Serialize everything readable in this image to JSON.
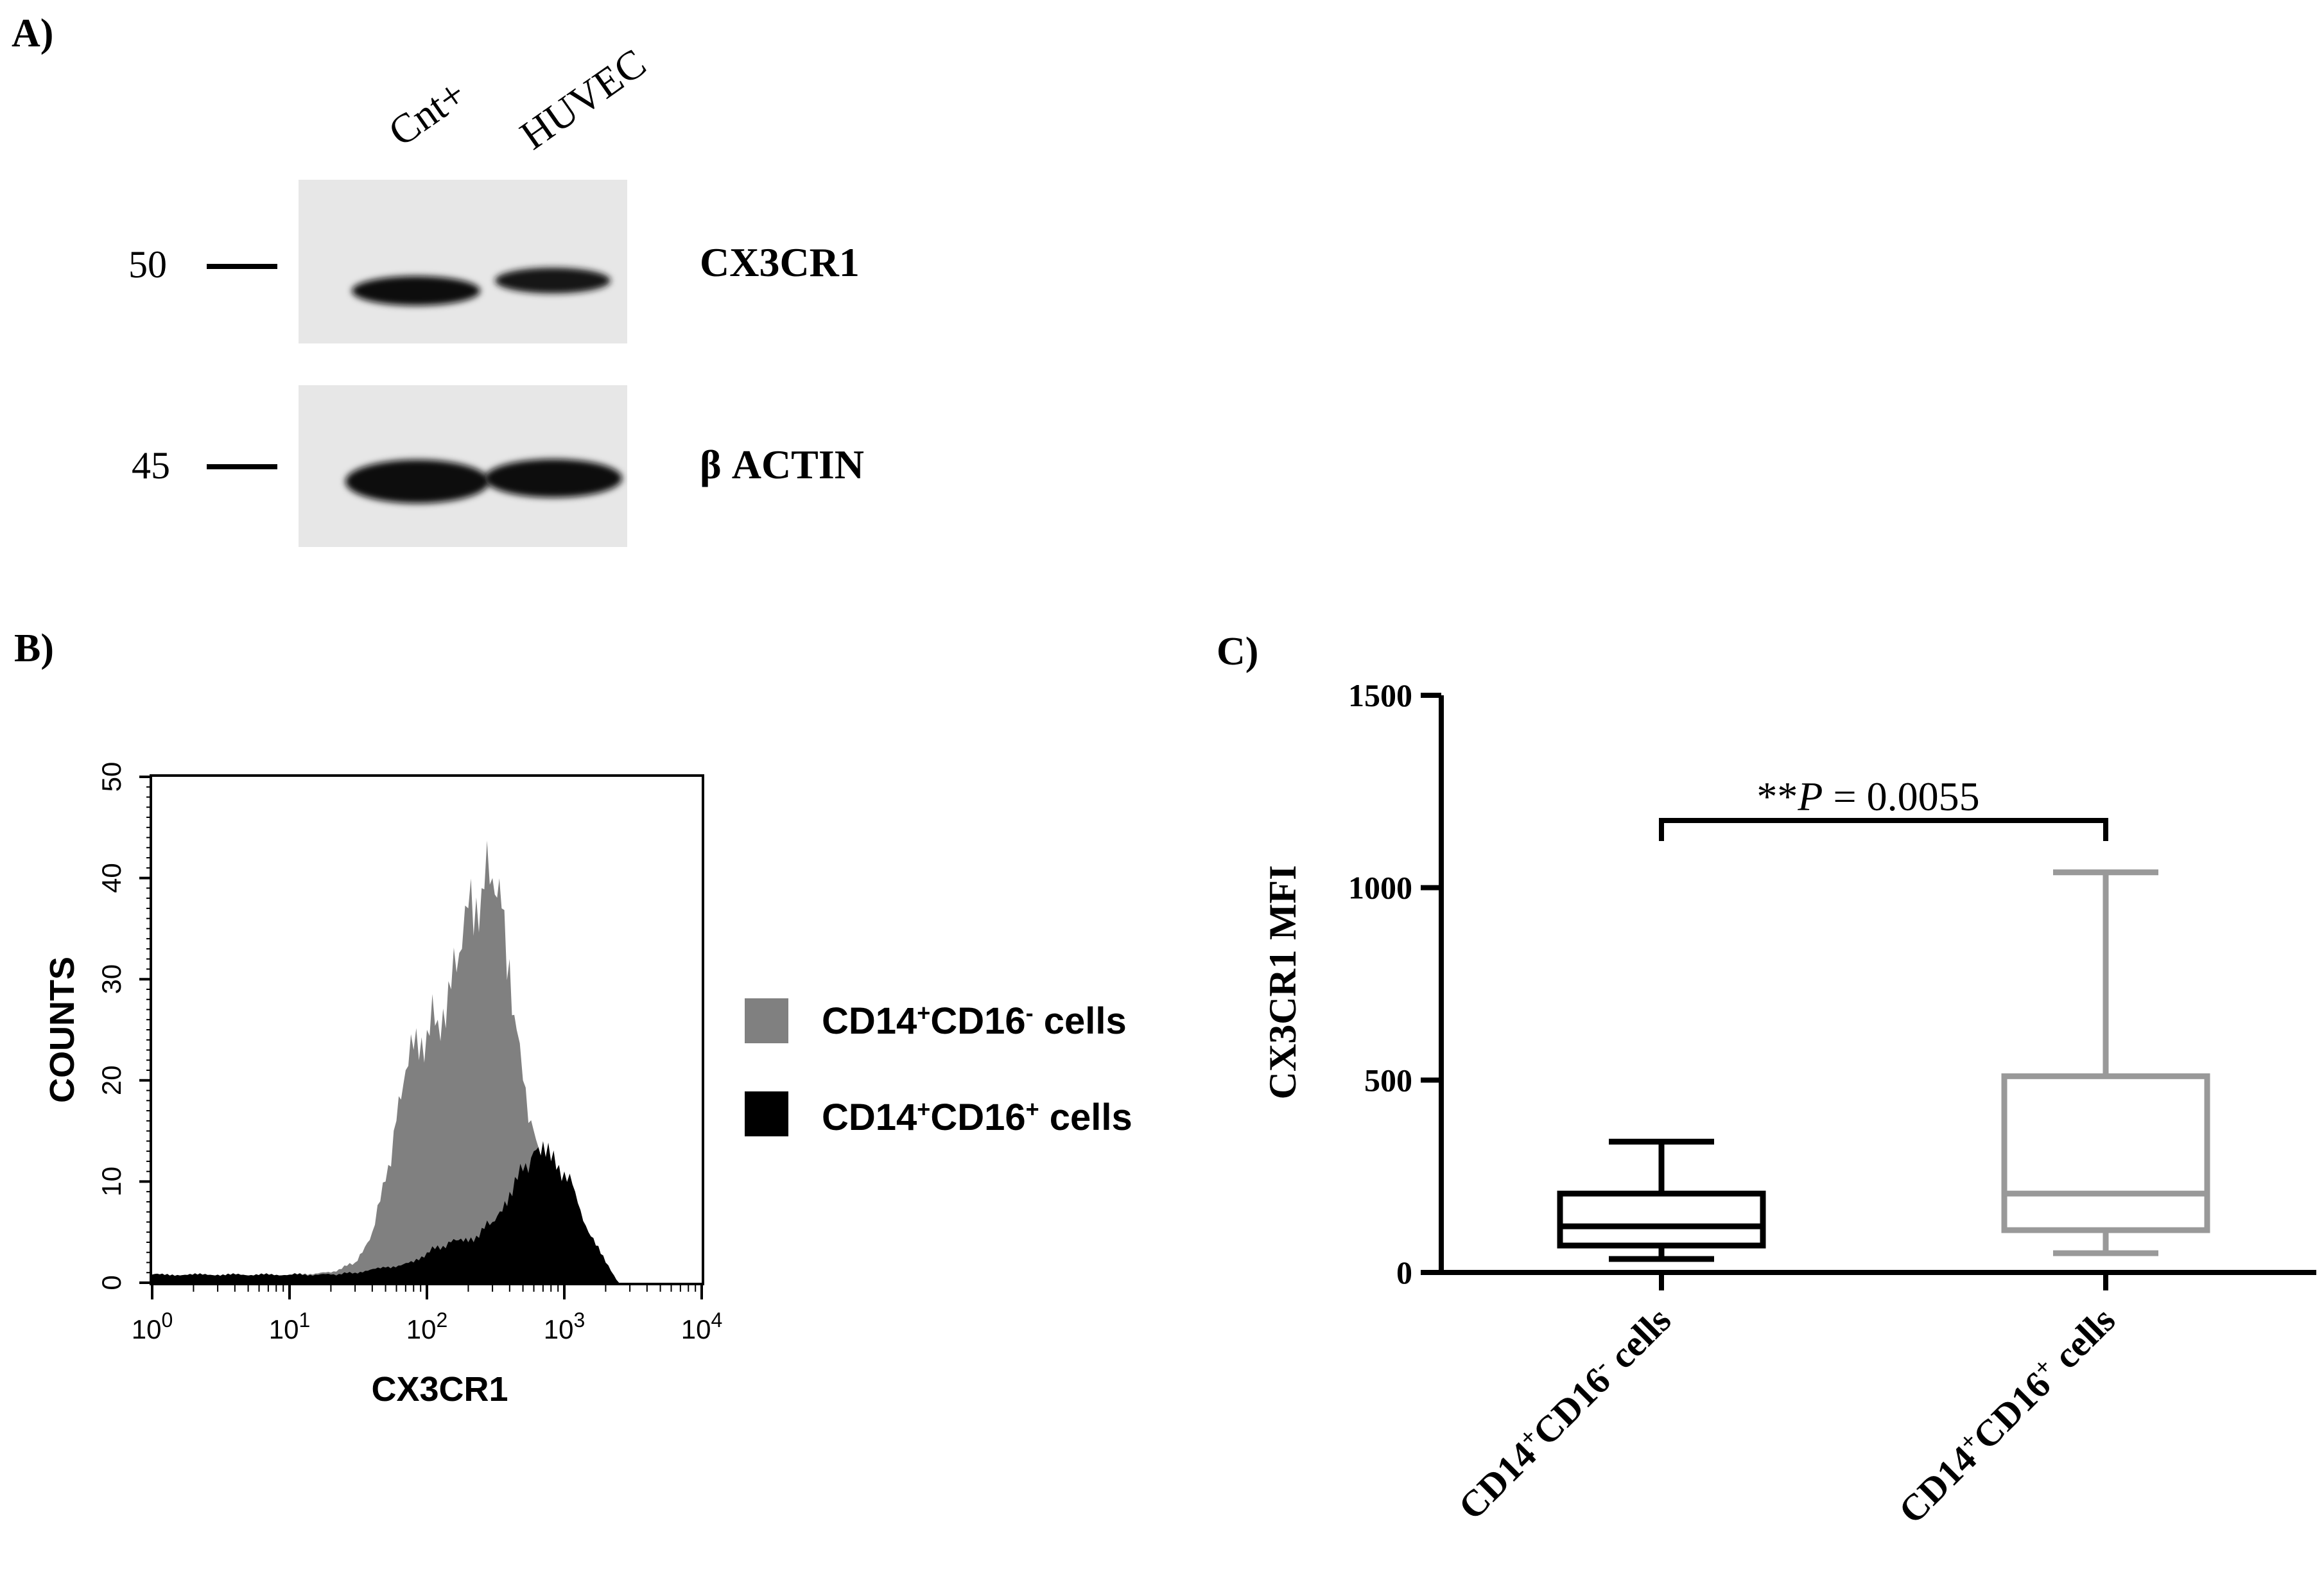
{
  "panels": {
    "a": {
      "label": "A)",
      "lanes": [
        "Cnt+",
        "HUVEC"
      ],
      "blots": [
        {
          "marker": "50",
          "protein": "CX3CR1"
        },
        {
          "marker": "45",
          "protein": "β ACTIN"
        }
      ]
    },
    "b": {
      "label": "B)",
      "ylabel": "COUNTS",
      "xlabel": "CX3CR1",
      "yticks": [
        "0",
        "10",
        "20",
        "30",
        "40",
        "50"
      ],
      "xtick_base": "10",
      "xtick_exps": [
        "0",
        "1",
        "2",
        "3",
        "4"
      ],
      "legend": [
        {
          "base": "CD14",
          "sup1": "+",
          "mid": "CD16",
          "sup2": "-",
          "tail": " cells",
          "color": "#808080"
        },
        {
          "base": "CD14",
          "sup1": "+",
          "mid": "CD16",
          "sup2": "+",
          "tail": " cells",
          "color": "#000000"
        }
      ]
    },
    "c": {
      "label": "C)",
      "pvalue": {
        "prefix": "**",
        "italic": "P",
        "rest": " = 0.0055"
      }
    }
  },
  "chart_data": [
    {
      "type": "area",
      "title": "",
      "xlabel": "CX3CR1",
      "ylabel": "COUNTS",
      "xscale": "log",
      "xlim": [
        1,
        10000
      ],
      "ylim": [
        0,
        50
      ],
      "grid": false,
      "legend_position": "right",
      "series": [
        {
          "name": "CD14+CD16- cells",
          "color": "#808080",
          "x": [
            1,
            3,
            10,
            20,
            30,
            40,
            50,
            60,
            70,
            80,
            100,
            120,
            150,
            180,
            200,
            250,
            300,
            350,
            400,
            450,
            500,
            600,
            700,
            800,
            1000,
            1300,
            1800,
            2500
          ],
          "y": [
            0.8,
            0.8,
            0.8,
            1,
            2,
            5,
            10,
            16,
            21,
            23,
            25,
            26,
            29,
            33,
            37,
            39,
            40,
            37,
            32,
            25,
            20,
            15,
            12,
            10,
            8,
            6,
            3,
            0
          ]
        },
        {
          "name": "CD14+CD16+ cells",
          "color": "#000000",
          "x": [
            1,
            3,
            10,
            20,
            30,
            50,
            80,
            100,
            150,
            200,
            300,
            400,
            500,
            600,
            700,
            800,
            1000,
            1200,
            1500,
            2000,
            2500
          ],
          "y": [
            0.8,
            0.8,
            0.8,
            0.8,
            1,
            1.5,
            2,
            3,
            4,
            4,
            6,
            9,
            11,
            13,
            14,
            12,
            11,
            9,
            5,
            2,
            0
          ]
        }
      ]
    },
    {
      "type": "box",
      "title": "",
      "xlabel": "",
      "ylabel": "CX3CR1 MFI",
      "ylim": [
        0,
        1500
      ],
      "yticks": [
        0,
        500,
        1000,
        1500
      ],
      "grid": false,
      "categories": [
        "CD14+CD16- cells",
        "CD14+CD16+ cells"
      ],
      "category_labels": [
        {
          "base": "CD14",
          "sup1": "+",
          "mid": "CD16",
          "sup2": "-",
          "tail": " cells"
        },
        {
          "base": "CD14",
          "sup1": "+",
          "mid": "CD16",
          "sup2": "+",
          "tail": " cells"
        }
      ],
      "boxes": [
        {
          "min": 35,
          "q1": 70,
          "median": 120,
          "q3": 205,
          "max": 340,
          "color": "#000000"
        },
        {
          "min": 50,
          "q1": 110,
          "median": 205,
          "q3": 510,
          "max": 1040,
          "color": "#999999"
        }
      ],
      "annotation": "**P = 0.0055"
    }
  ]
}
